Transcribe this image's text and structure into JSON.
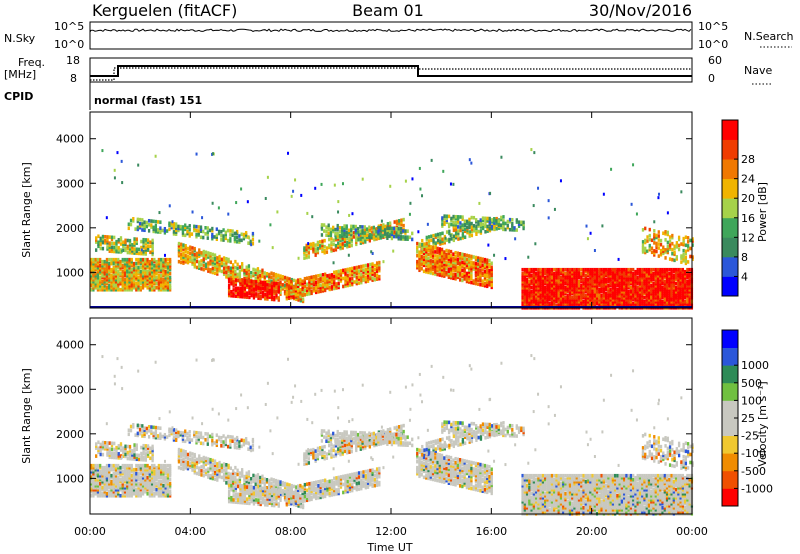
{
  "header": {
    "title": "Kerguelen (fitACF)",
    "beam": "Beam 01",
    "date": "30/Nov/2016"
  },
  "nsky_panel": {
    "left_label": "N.Sky",
    "right_label": "N.Search",
    "tick_top": "10^5",
    "tick_bottom": "10^0"
  },
  "freq_panel": {
    "left_label_1": "Freq.",
    "left_label_2": "[MHz]",
    "left_ticks": [
      "18",
      "8"
    ],
    "right_ticks": [
      "60",
      "0"
    ],
    "right_label": "Nave",
    "cpid_label": "CPID",
    "mode_text": "normal (fast) 151"
  },
  "colors": {
    "power_scale": [
      "#0000ff",
      "#2b57d9",
      "#3a8a5e",
      "#3fa65a",
      "#a6d24a",
      "#f0b400",
      "#f07800",
      "#f03c00",
      "#ff0000"
    ],
    "velocity_scale": [
      "#ff0000",
      "#f05000",
      "#f08c00",
      "#f0c830",
      "#c8c8c0",
      "#c8c8c0",
      "#70c040",
      "#2e8b57",
      "#2b57d9",
      "#0000ff"
    ]
  },
  "chart_data": [
    {
      "type": "heatmap",
      "name": "Power",
      "xlabel": "",
      "ylabel": "Slant Range [km]",
      "x_ticks": [
        "00:00",
        "04:00",
        "08:00",
        "12:00",
        "16:00",
        "20:00",
        "00:00"
      ],
      "y_ticks": [
        1000,
        2000,
        3000,
        4000
      ],
      "ylim": [
        200,
        4600
      ],
      "xlim_hours": [
        0,
        24
      ],
      "colorbar_label": "Power [dB]",
      "colorbar_ticks": [
        "4",
        "8",
        "12",
        "16",
        "20",
        "24",
        "28"
      ],
      "colorbar_range": [
        0,
        32
      ]
    },
    {
      "type": "heatmap",
      "name": "Velocity",
      "xlabel": "Time UT",
      "ylabel": "Slant Range [km]",
      "x_ticks": [
        "00:00",
        "04:00",
        "08:00",
        "12:00",
        "16:00",
        "20:00",
        "00:00"
      ],
      "y_ticks": [
        1000,
        2000,
        3000,
        4000
      ],
      "ylim": [
        200,
        4600
      ],
      "xlim_hours": [
        0,
        24
      ],
      "colorbar_label": "Velocity [m s⁻¹]",
      "colorbar_ticks": [
        "-1000",
        "-500",
        "-100",
        "-25",
        "25",
        "100",
        "500",
        "1000"
      ]
    }
  ]
}
